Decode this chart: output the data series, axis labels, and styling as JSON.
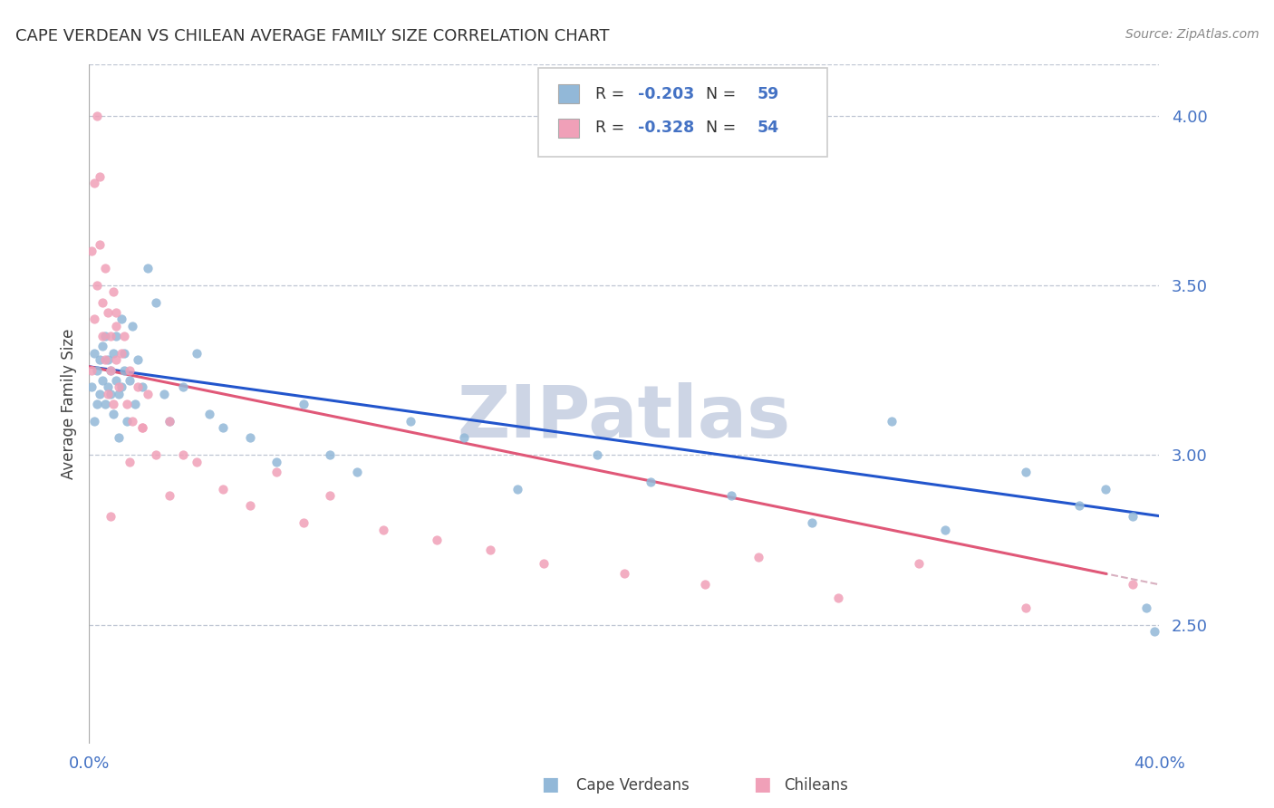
{
  "title": "CAPE VERDEAN VS CHILEAN AVERAGE FAMILY SIZE CORRELATION CHART",
  "source_text": "Source: ZipAtlas.com",
  "ylabel": "Average Family Size",
  "xlim": [
    0.0,
    0.4
  ],
  "ylim": [
    2.15,
    4.15
  ],
  "yticks": [
    2.5,
    3.0,
    3.5,
    4.0
  ],
  "title_color": "#333333",
  "title_fontsize": 13,
  "axis_color": "#4472c4",
  "grid_color": "#b0b8c8",
  "watermark_text": "ZIPatlas",
  "watermark_color": "#cdd5e5",
  "cape_verdean_color": "#92b8d8",
  "chilean_color": "#f0a0b8",
  "cape_verdean_line_color": "#2255cc",
  "chilean_line_color": "#e05878",
  "chilean_dash_color": "#d8b0c0",
  "R_cape": -0.203,
  "N_cape": 59,
  "R_chile": -0.328,
  "N_chile": 54,
  "cape_x": [
    0.001,
    0.002,
    0.002,
    0.003,
    0.003,
    0.004,
    0.004,
    0.005,
    0.005,
    0.006,
    0.006,
    0.007,
    0.007,
    0.008,
    0.008,
    0.009,
    0.009,
    0.01,
    0.01,
    0.011,
    0.011,
    0.012,
    0.012,
    0.013,
    0.013,
    0.014,
    0.015,
    0.016,
    0.017,
    0.018,
    0.02,
    0.022,
    0.025,
    0.028,
    0.03,
    0.035,
    0.04,
    0.045,
    0.05,
    0.06,
    0.07,
    0.08,
    0.09,
    0.1,
    0.12,
    0.14,
    0.16,
    0.19,
    0.21,
    0.24,
    0.27,
    0.3,
    0.32,
    0.35,
    0.37,
    0.38,
    0.39,
    0.395,
    0.398
  ],
  "cape_y": [
    3.2,
    3.3,
    3.1,
    3.25,
    3.15,
    3.28,
    3.18,
    3.32,
    3.22,
    3.35,
    3.15,
    3.28,
    3.2,
    3.25,
    3.18,
    3.3,
    3.12,
    3.22,
    3.35,
    3.18,
    3.05,
    3.4,
    3.2,
    3.25,
    3.3,
    3.1,
    3.22,
    3.38,
    3.15,
    3.28,
    3.2,
    3.55,
    3.45,
    3.18,
    3.1,
    3.2,
    3.3,
    3.12,
    3.08,
    3.05,
    2.98,
    3.15,
    3.0,
    2.95,
    3.1,
    3.05,
    2.9,
    3.0,
    2.92,
    2.88,
    2.8,
    3.1,
    2.78,
    2.95,
    2.85,
    2.9,
    2.82,
    2.55,
    2.48
  ],
  "chile_x": [
    0.001,
    0.001,
    0.002,
    0.002,
    0.003,
    0.003,
    0.004,
    0.004,
    0.005,
    0.005,
    0.006,
    0.006,
    0.007,
    0.007,
    0.008,
    0.008,
    0.009,
    0.009,
    0.01,
    0.01,
    0.011,
    0.012,
    0.013,
    0.014,
    0.015,
    0.016,
    0.018,
    0.02,
    0.022,
    0.025,
    0.03,
    0.035,
    0.04,
    0.05,
    0.06,
    0.07,
    0.08,
    0.09,
    0.11,
    0.13,
    0.15,
    0.17,
    0.2,
    0.23,
    0.25,
    0.28,
    0.31,
    0.35,
    0.39,
    0.01,
    0.02,
    0.03,
    0.008,
    0.015
  ],
  "chile_y": [
    3.25,
    3.6,
    3.4,
    3.8,
    3.5,
    4.0,
    3.62,
    3.82,
    3.45,
    3.35,
    3.55,
    3.28,
    3.42,
    3.18,
    3.35,
    3.25,
    3.48,
    3.15,
    3.38,
    3.28,
    3.2,
    3.3,
    3.35,
    3.15,
    3.25,
    3.1,
    3.2,
    3.08,
    3.18,
    3.0,
    3.1,
    3.0,
    2.98,
    2.9,
    2.85,
    2.95,
    2.8,
    2.88,
    2.78,
    2.75,
    2.72,
    2.68,
    2.65,
    2.62,
    2.7,
    2.58,
    2.68,
    2.55,
    2.62,
    3.42,
    3.08,
    2.88,
    2.82,
    2.98
  ]
}
